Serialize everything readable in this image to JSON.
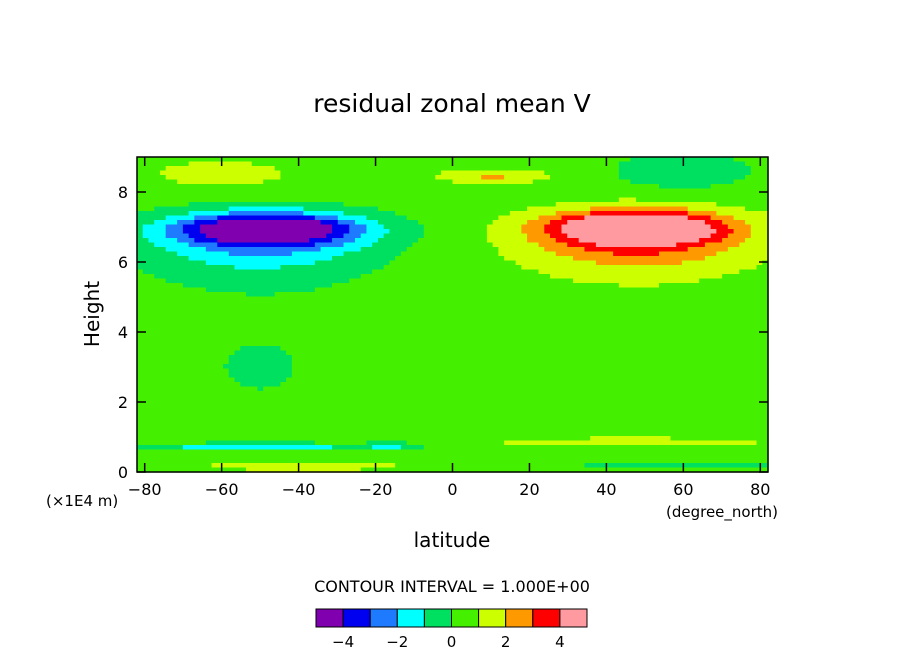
{
  "chart_data": {
    "type": "heatmap",
    "title": "residual zonal mean V",
    "xlabel": "latitude",
    "ylabel": "Height",
    "x_units": "(degree_north)",
    "y_units": "(×1E4 m)",
    "xlim": [
      -82,
      82
    ],
    "ylim": [
      0,
      9
    ],
    "x_ticks": [
      -80,
      -60,
      -40,
      -20,
      0,
      20,
      40,
      60,
      80
    ],
    "y_ticks": [
      0,
      2,
      4,
      6,
      8
    ],
    "contour_interval_text": "CONTOUR INTERVAL = 1.000E+00",
    "colorbar": {
      "levels": [
        -5,
        -4,
        -3,
        -2,
        -1,
        0,
        1,
        2,
        3,
        4,
        5
      ],
      "tick_values": [
        -4,
        -2,
        0,
        2,
        4
      ],
      "colors": [
        "#8000b0",
        "#0000f0",
        "#1e7bff",
        "#00ffff",
        "#00e060",
        "#44f000",
        "#ccff00",
        "#ff9900",
        "#ff0000",
        "#ff9aa0"
      ]
    },
    "background_value": 0.5,
    "features": [
      {
        "lat": -48,
        "height": 6.95,
        "wlat": 24,
        "wh": 0.45,
        "amp": -5.4
      },
      {
        "lat": -50,
        "height": 6.5,
        "wlat": 28,
        "wh": 0.85,
        "amp": -2.3
      },
      {
        "lat": 48,
        "height": 7.0,
        "wlat": 22,
        "wh": 0.45,
        "amp": 5.2
      },
      {
        "lat": 48,
        "height": 6.55,
        "wlat": 28,
        "wh": 0.8,
        "amp": 2.5
      },
      {
        "lat": 10,
        "height": 8.45,
        "wlat": 14,
        "wh": 0.2,
        "amp": 1.6
      },
      {
        "lat": 60,
        "height": 8.6,
        "wlat": 18,
        "wh": 0.5,
        "amp": -1.4
      },
      {
        "lat": -60,
        "height": 8.5,
        "wlat": 22,
        "wh": 0.5,
        "amp": 0.9
      },
      {
        "lat": -50,
        "height": 0.72,
        "wlat": 35,
        "wh": 0.08,
        "amp": -1.7
      },
      {
        "lat": -17,
        "height": 0.77,
        "wlat": 4,
        "wh": 0.08,
        "amp": -2.6
      },
      {
        "lat": -17,
        "height": 0.92,
        "wlat": 3,
        "wh": 0.07,
        "amp": 1.0
      },
      {
        "lat": -40,
        "height": 0.15,
        "wlat": 28,
        "wh": 0.12,
        "amp": 1.6
      },
      {
        "lat": 45,
        "height": 0.85,
        "wlat": 34,
        "wh": 0.1,
        "amp": 0.9
      },
      {
        "lat": 60,
        "height": 0.18,
        "wlat": 28,
        "wh": 0.12,
        "amp": -1.6
      },
      {
        "lat": 35,
        "height": 3.0,
        "wlat": 60,
        "wh": 3.5,
        "amp": 0.5
      },
      {
        "lat": -40,
        "height": 3.0,
        "wlat": 60,
        "wh": 3.5,
        "amp": -0.6
      }
    ]
  }
}
